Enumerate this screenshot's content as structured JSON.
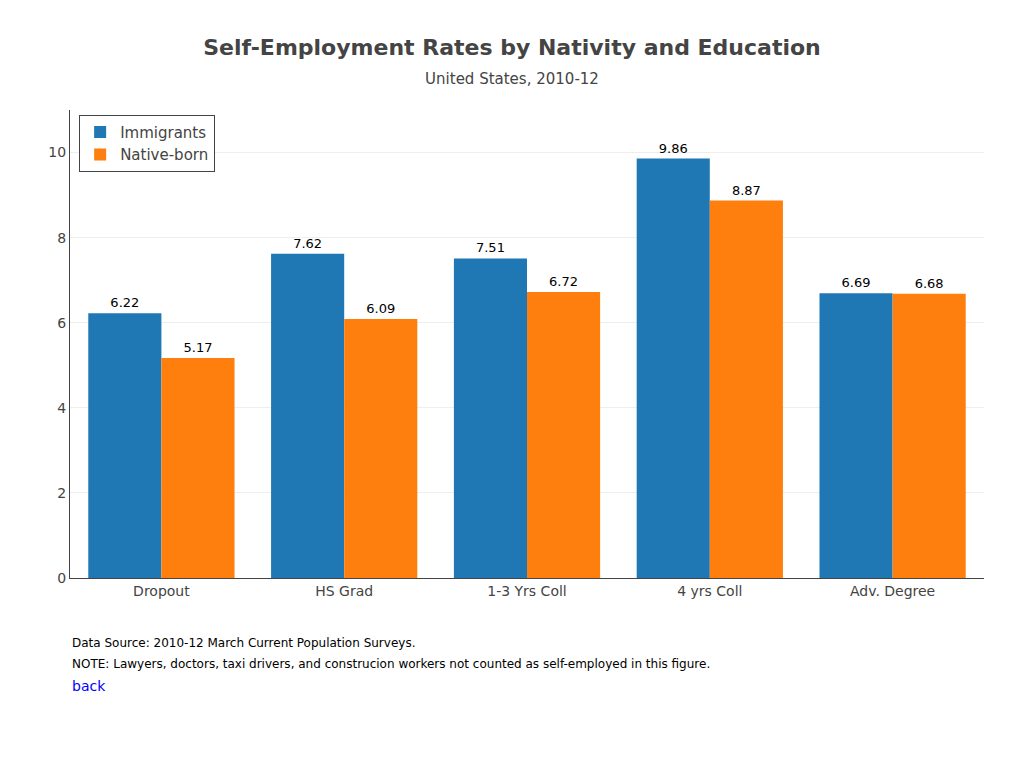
{
  "chart_data": {
    "type": "bar",
    "title": "Self-Employment Rates by Nativity and Education",
    "subtitle": "United States, 2010-12",
    "categories": [
      "Dropout",
      "HS Grad",
      "1-3 Yrs Coll",
      "4 yrs Coll",
      "Adv. Degree"
    ],
    "series": [
      {
        "name": "Immigrants",
        "values": [
          6.22,
          7.62,
          7.51,
          9.86,
          6.69
        ]
      },
      {
        "name": "Native-born",
        "values": [
          5.17,
          6.09,
          6.72,
          8.87,
          6.68
        ]
      }
    ],
    "ylim": [
      0,
      11
    ],
    "yticks": [
      0,
      2,
      4,
      6,
      8,
      10
    ],
    "grid": true,
    "legend": "upper left",
    "data_labels": true,
    "annotations": [
      "Data Source: 2010-12 March Current Population Surveys.",
      "NOTE: Lawyers, doctors, taxi drivers, and construcion workers not counted as self-employed in this figure.",
      "back"
    ]
  }
}
